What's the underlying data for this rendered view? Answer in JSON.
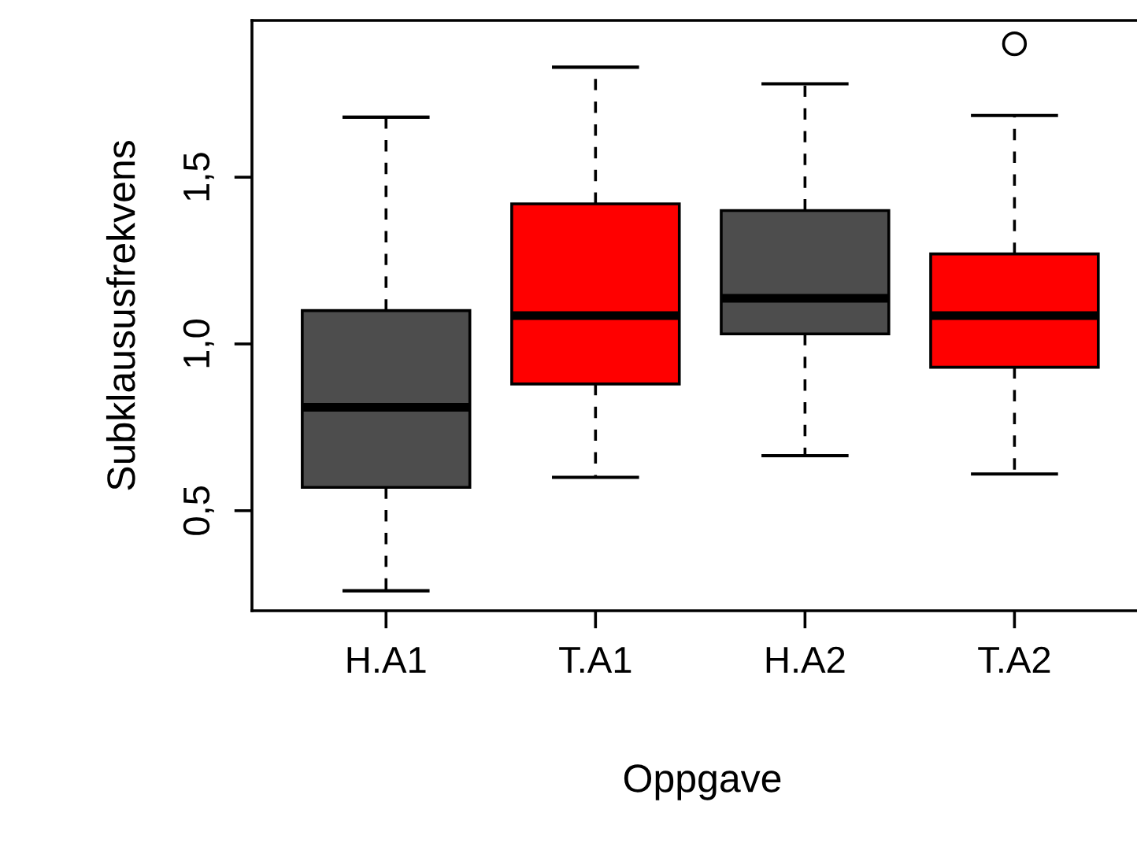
{
  "chart_data": {
    "type": "box",
    "xlabel": "Oppgave",
    "ylabel": "Subklaususfrekvens",
    "categories": [
      "H.A1",
      "T.A1",
      "H.A2",
      "T.A2"
    ],
    "colors": [
      "#4d4d4d",
      "#ff0000",
      "#4d4d4d",
      "#ff0000"
    ],
    "boxes": [
      {
        "low": 0.26,
        "q1": 0.57,
        "median": 0.81,
        "q3": 1.1,
        "high": 1.68
      },
      {
        "low": 0.6,
        "q1": 0.88,
        "median": 1.085,
        "q3": 1.42,
        "high": 1.83
      },
      {
        "low": 0.665,
        "q1": 1.03,
        "median": 1.137,
        "q3": 1.4,
        "high": 1.78
      },
      {
        "low": 0.61,
        "q1": 0.93,
        "median": 1.085,
        "q3": 1.27,
        "high": 1.685,
        "outliers": [
          1.9
        ]
      }
    ],
    "ylim": [
      0.2,
      1.97
    ],
    "yticks": [
      {
        "value": 0.5,
        "label": "0,5"
      },
      {
        "value": 1.0,
        "label": "1,0"
      },
      {
        "value": 1.5,
        "label": "1,5"
      }
    ],
    "grid": false,
    "legend": false
  }
}
